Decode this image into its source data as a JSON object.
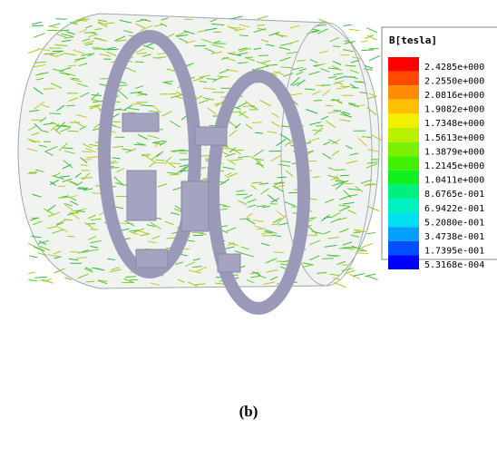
{
  "legend": {
    "title": "B[tesla]",
    "entries": [
      {
        "label": "2.4285e+000",
        "color": "#ff0000"
      },
      {
        "label": "2.2550e+000",
        "color": "#ff4a00"
      },
      {
        "label": "2.0816e+000",
        "color": "#ff8c00"
      },
      {
        "label": "1.9082e+000",
        "color": "#ffc000"
      },
      {
        "label": "1.7348e+000",
        "color": "#f0f000"
      },
      {
        "label": "1.5613e+000",
        "color": "#b8f000"
      },
      {
        "label": "1.3879e+000",
        "color": "#7cf000"
      },
      {
        "label": "1.2145e+000",
        "color": "#40f000"
      },
      {
        "label": "1.0411e+000",
        "color": "#10f020"
      },
      {
        "label": "8.6765e-001",
        "color": "#00f080"
      },
      {
        "label": "6.9422e-001",
        "color": "#00f0c0"
      },
      {
        "label": "5.2080e-001",
        "color": "#00e0f0"
      },
      {
        "label": "3.4738e-001",
        "color": "#00a0ff"
      },
      {
        "label": "1.7395e-001",
        "color": "#0050ff"
      },
      {
        "label": "5.3168e-004",
        "color": "#0000ff"
      }
    ]
  },
  "caption": "(b)"
}
